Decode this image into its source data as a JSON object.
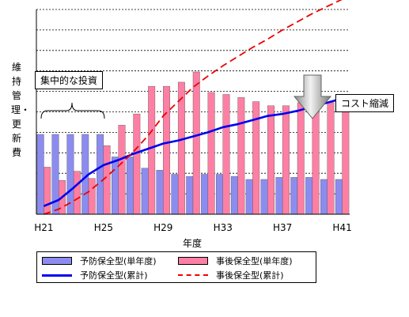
{
  "chart_data": {
    "type": "bar",
    "title": "",
    "xlabel": "年度",
    "ylabel": "維持管理・更新費",
    "x_tick_labels": [
      "H21",
      "H25",
      "H29",
      "H33",
      "H37",
      "H41"
    ],
    "x_tick_years": [
      21,
      25,
      29,
      33,
      37,
      41
    ],
    "years": [
      21,
      22,
      23,
      24,
      25,
      26,
      27,
      28,
      29,
      30,
      31,
      32,
      33,
      34,
      35,
      36,
      37,
      38,
      39,
      40,
      41
    ],
    "ylim": [
      0,
      20
    ],
    "grid": true,
    "series": [
      {
        "name": "予防保全型(単年度)",
        "kind": "bar",
        "color": "#8c8cf0",
        "values": [
          7.8,
          7.8,
          7.8,
          7.8,
          7.8,
          5.6,
          5.6,
          4.5,
          4.3,
          3.9,
          3.7,
          3.9,
          3.9,
          3.7,
          3.4,
          3.4,
          3.6,
          3.6,
          3.6,
          3.4,
          3.4
        ]
      },
      {
        "name": "事後保全型(単年度)",
        "kind": "bar",
        "color": "#ff7fa4",
        "values": [
          4.6,
          3.3,
          4.2,
          3.5,
          6.7,
          8.7,
          9.8,
          12.5,
          12.5,
          12.9,
          13.9,
          11.9,
          11.7,
          11.4,
          11.0,
          10.6,
          10.6,
          10.9,
          10.9,
          10.9,
          10.5
        ]
      },
      {
        "name": "予防保全型(累計)",
        "kind": "line",
        "color": "#0000ee",
        "dash": "solid",
        "values": [
          0.8,
          1.4,
          2.6,
          3.9,
          4.8,
          5.3,
          5.9,
          6.4,
          6.9,
          7.2,
          7.6,
          8.0,
          8.5,
          8.8,
          9.2,
          9.6,
          9.8,
          10.1,
          10.5,
          10.9,
          11.3
        ]
      },
      {
        "name": "事後保全型(累計)",
        "kind": "line",
        "color": "#ee0000",
        "dash": "dashed",
        "values": [
          0.0,
          0.5,
          1.3,
          2.2,
          3.4,
          4.7,
          6.1,
          7.7,
          9.6,
          11.0,
          12.4,
          13.5,
          14.5,
          15.4,
          16.3,
          17.1,
          18.0,
          18.8,
          19.6,
          20.3,
          21.0
        ]
      }
    ],
    "annotations": [
      {
        "id": "intensive",
        "text": "集中的な投資"
      },
      {
        "id": "reduction",
        "text": "コスト縮減"
      }
    ]
  }
}
